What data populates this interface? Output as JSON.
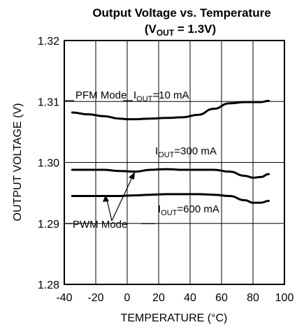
{
  "chart_data": {
    "type": "line",
    "title": "Output Voltage vs. Temperature",
    "subtitle": {
      "prefix": "(V",
      "sub": "OUT",
      "suffix": " = 1.3V)"
    },
    "xlabel": "TEMPERATURE (°C)",
    "ylabel": "OUTPUT VOLTAGE (V)",
    "xlim": [
      -40,
      100
    ],
    "ylim": [
      1.28,
      1.32
    ],
    "xticks": [
      -40,
      -20,
      0,
      20,
      40,
      60,
      80,
      100
    ],
    "xtick_labels": [
      "-40",
      "-20",
      "0",
      "20",
      "40",
      "60",
      "80",
      "100"
    ],
    "yticks": [
      1.28,
      1.29,
      1.3,
      1.31,
      1.32
    ],
    "ytick_labels": [
      "1.28",
      "1.29",
      "1.30",
      "1.31",
      "1.32"
    ],
    "grid": true,
    "series": [
      {
        "name": "IOUT=10 mA",
        "x": [
          -35,
          -25,
          -15,
          -5,
          0,
          5,
          15,
          25,
          35,
          45,
          55,
          65,
          75,
          85,
          90
        ],
        "y": [
          1.3082,
          1.3079,
          1.3076,
          1.3072,
          1.3071,
          1.3071,
          1.3072,
          1.3073,
          1.3074,
          1.3078,
          1.3088,
          1.3097,
          1.3099,
          1.3099,
          1.3101
        ]
      },
      {
        "name": "IOUT=300 mA",
        "x": [
          -35,
          -25,
          -15,
          -5,
          5,
          15,
          25,
          35,
          45,
          55,
          65,
          75,
          80,
          85,
          90
        ],
        "y": [
          1.2988,
          1.2988,
          1.2988,
          1.2986,
          1.2985,
          1.2988,
          1.2989,
          1.2988,
          1.2988,
          1.2988,
          1.2985,
          1.2978,
          1.2975,
          1.2976,
          1.2981
        ]
      },
      {
        "name": "IOUT=600 mA",
        "x": [
          -35,
          -25,
          -15,
          -5,
          5,
          15,
          25,
          35,
          45,
          55,
          65,
          75,
          80,
          85,
          90
        ],
        "y": [
          1.2945,
          1.2945,
          1.2945,
          1.2945,
          1.2946,
          1.2947,
          1.2948,
          1.2948,
          1.2948,
          1.2947,
          1.2945,
          1.2938,
          1.2934,
          1.2934,
          1.2937
        ]
      }
    ],
    "annotations": {
      "pfm_mode": "PFM Mode",
      "pwm_mode": "PWM Mode",
      "i10_prefix": "I",
      "i10_sub": "OUT",
      "i10_suffix": "=10 mA",
      "i300_prefix": "I",
      "i300_sub": "OUT",
      "i300_suffix": "=300 mA",
      "i600_prefix": "I",
      "i600_sub": "OUT",
      "i600_suffix": "=600 mA"
    }
  }
}
